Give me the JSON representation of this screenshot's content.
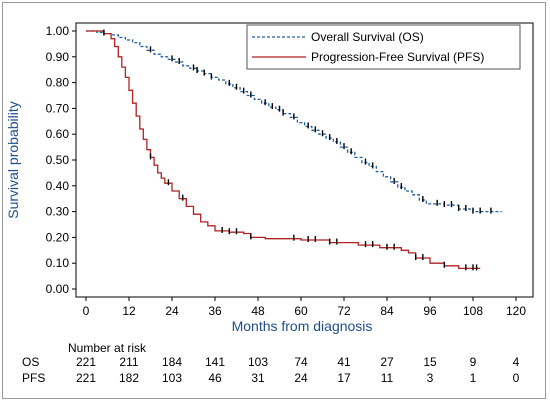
{
  "chart_data": {
    "type": "line",
    "subtype": "kaplan-meier",
    "xlabel": "Months from diagnosis",
    "ylabel": "Survival probability",
    "xlim": [
      0,
      120
    ],
    "ylim": [
      0,
      1
    ],
    "x_ticks": [
      0,
      12,
      24,
      36,
      48,
      60,
      72,
      84,
      96,
      108,
      120
    ],
    "y_ticks": [
      "0.00",
      "0.10",
      "0.20",
      "0.30",
      "0.40",
      "0.50",
      "0.60",
      "0.70",
      "0.80",
      "0.90",
      "1.00"
    ],
    "legend_position": "top-right",
    "series": [
      {
        "name": "Overall Survival (OS)",
        "color": "#1f5f9e",
        "style": "dashed",
        "steps": [
          [
            0,
            1.0
          ],
          [
            3,
            0.995
          ],
          [
            5,
            0.99
          ],
          [
            7,
            0.985
          ],
          [
            9,
            0.975
          ],
          [
            11,
            0.965
          ],
          [
            13,
            0.955
          ],
          [
            15,
            0.94
          ],
          [
            17,
            0.925
          ],
          [
            19,
            0.91
          ],
          [
            21,
            0.9
          ],
          [
            23,
            0.89
          ],
          [
            25,
            0.88
          ],
          [
            27,
            0.865
          ],
          [
            29,
            0.855
          ],
          [
            31,
            0.845
          ],
          [
            33,
            0.835
          ],
          [
            35,
            0.82
          ],
          [
            37,
            0.81
          ],
          [
            39,
            0.795
          ],
          [
            41,
            0.78
          ],
          [
            43,
            0.765
          ],
          [
            45,
            0.75
          ],
          [
            47,
            0.735
          ],
          [
            49,
            0.72
          ],
          [
            51,
            0.705
          ],
          [
            53,
            0.695
          ],
          [
            55,
            0.68
          ],
          [
            57,
            0.665
          ],
          [
            59,
            0.645
          ],
          [
            61,
            0.63
          ],
          [
            63,
            0.615
          ],
          [
            65,
            0.6
          ],
          [
            67,
            0.585
          ],
          [
            69,
            0.57
          ],
          [
            71,
            0.55
          ],
          [
            73,
            0.53
          ],
          [
            75,
            0.51
          ],
          [
            77,
            0.49
          ],
          [
            79,
            0.475
          ],
          [
            81,
            0.455
          ],
          [
            83,
            0.435
          ],
          [
            85,
            0.415
          ],
          [
            87,
            0.395
          ],
          [
            89,
            0.38
          ],
          [
            91,
            0.365
          ],
          [
            93,
            0.345
          ],
          [
            95,
            0.33
          ],
          [
            100,
            0.325
          ],
          [
            104,
            0.31
          ],
          [
            108,
            0.3
          ],
          [
            116,
            0.3
          ]
        ]
      },
      {
        "name": "Progression-Free Survival (PFS)",
        "color": "#b22222",
        "style": "solid",
        "steps": [
          [
            0,
            1.0
          ],
          [
            5,
            0.99
          ],
          [
            7,
            0.97
          ],
          [
            8,
            0.94
          ],
          [
            9,
            0.9
          ],
          [
            10,
            0.86
          ],
          [
            11,
            0.82
          ],
          [
            12,
            0.77
          ],
          [
            13,
            0.72
          ],
          [
            14,
            0.67
          ],
          [
            15,
            0.62
          ],
          [
            16,
            0.58
          ],
          [
            17,
            0.54
          ],
          [
            18,
            0.51
          ],
          [
            19,
            0.48
          ],
          [
            20,
            0.45
          ],
          [
            21,
            0.43
          ],
          [
            22,
            0.41
          ],
          [
            24,
            0.38
          ],
          [
            26,
            0.35
          ],
          [
            28,
            0.32
          ],
          [
            30,
            0.29
          ],
          [
            32,
            0.26
          ],
          [
            34,
            0.245
          ],
          [
            36,
            0.225
          ],
          [
            40,
            0.22
          ],
          [
            44,
            0.215
          ],
          [
            46,
            0.2
          ],
          [
            50,
            0.195
          ],
          [
            60,
            0.19
          ],
          [
            68,
            0.18
          ],
          [
            76,
            0.17
          ],
          [
            82,
            0.16
          ],
          [
            88,
            0.15
          ],
          [
            90,
            0.14
          ],
          [
            92,
            0.12
          ],
          [
            96,
            0.1
          ],
          [
            100,
            0.09
          ],
          [
            104,
            0.08
          ],
          [
            108,
            0.08
          ],
          [
            110,
            0.08
          ]
        ]
      }
    ],
    "censor_marks": {
      "OS": [
        5,
        18,
        24,
        26,
        30,
        31,
        33,
        35,
        40,
        42,
        44,
        46,
        50,
        52,
        54,
        55,
        58,
        62,
        64,
        66,
        68,
        70,
        72,
        74,
        78,
        80,
        86,
        88,
        94,
        98,
        100,
        102,
        104,
        106,
        108,
        110,
        113
      ],
      "PFS": [
        18,
        23,
        27,
        38,
        40,
        42,
        46,
        58,
        62,
        64,
        68,
        70,
        78,
        80,
        84,
        86,
        92,
        94,
        100,
        106,
        108,
        109
      ]
    }
  },
  "risk_table": {
    "title": "Number at risk",
    "rows": [
      {
        "label": "OS",
        "values": [
          "221",
          "211",
          "184",
          "141",
          "103",
          "74",
          "41",
          "27",
          "15",
          "9",
          "4"
        ]
      },
      {
        "label": "PFS",
        "values": [
          "221",
          "182",
          "103",
          "46",
          "31",
          "24",
          "17",
          "11",
          "3",
          "1",
          "0"
        ]
      }
    ]
  }
}
